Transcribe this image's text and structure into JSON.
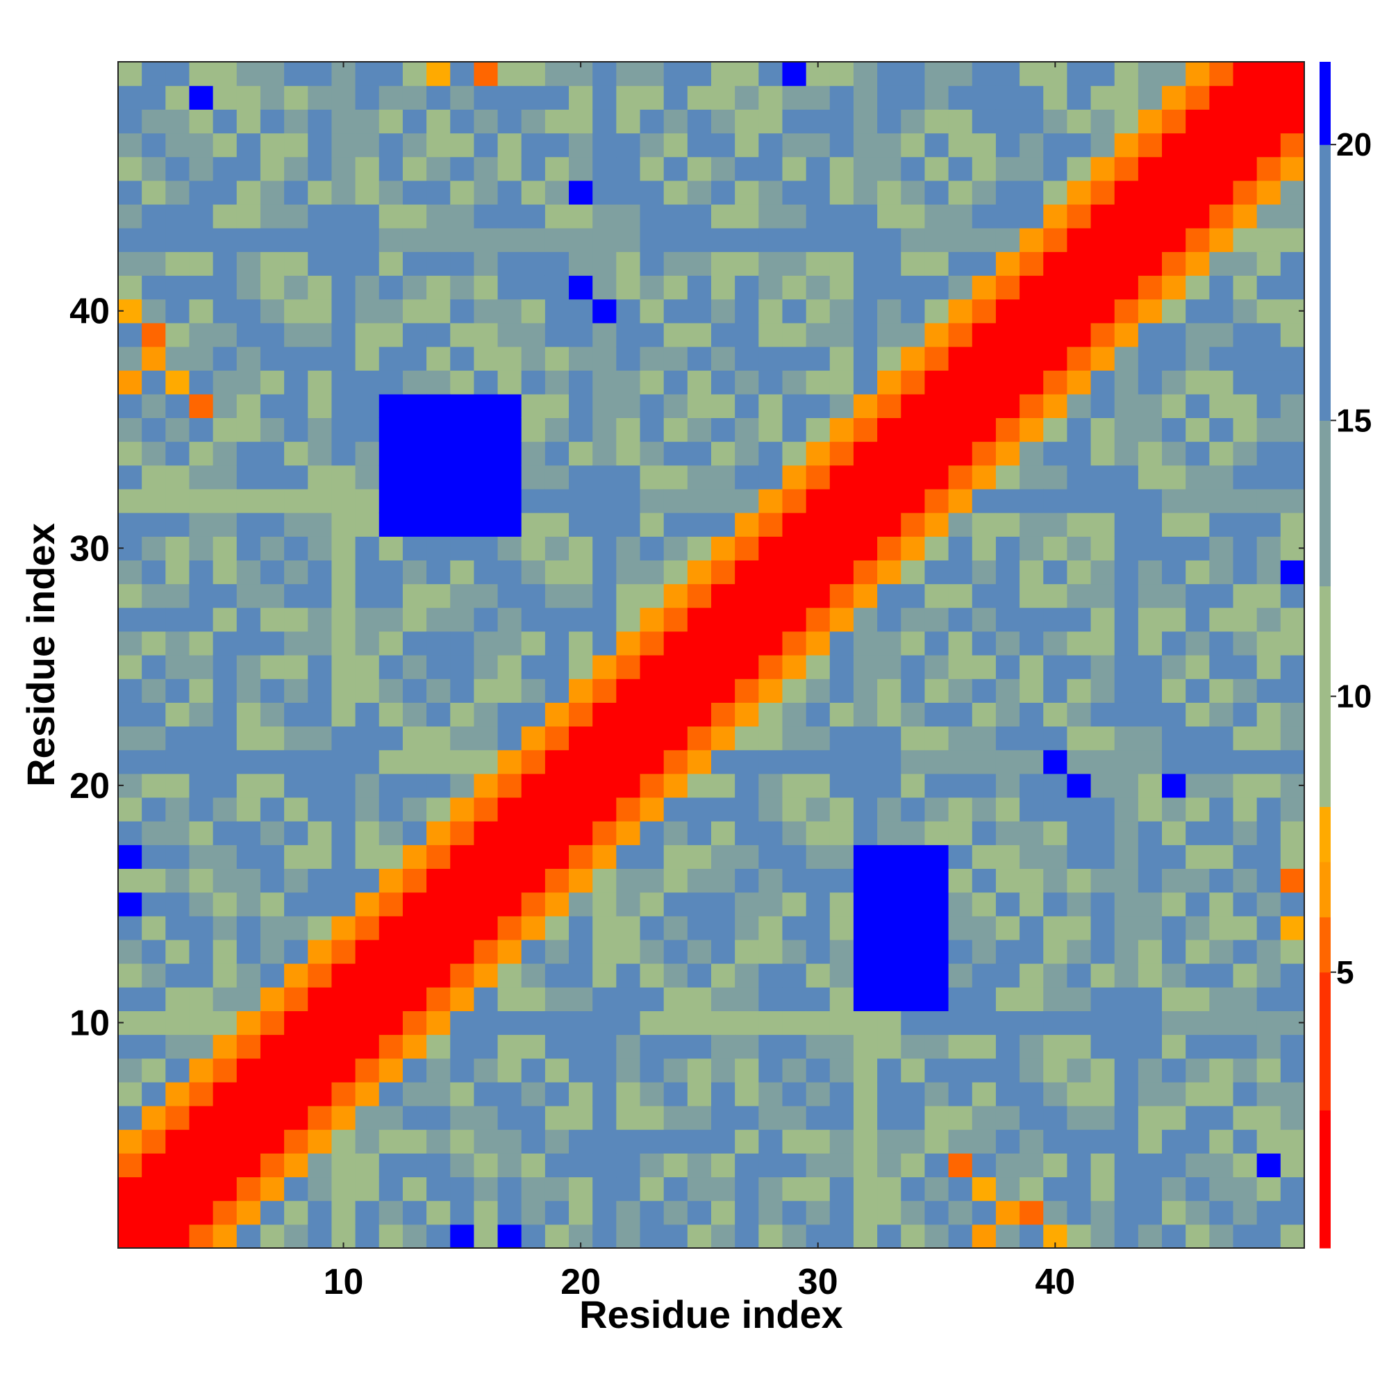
{
  "chart_data": {
    "type": "heatmap",
    "title": "",
    "xlabel": "Residue index",
    "ylabel": "Residue index",
    "n": 50,
    "x_ticks": [
      10,
      20,
      30,
      40
    ],
    "y_ticks": [
      10,
      20,
      30,
      40
    ],
    "xlim": [
      0.5,
      50.5
    ],
    "ylim": [
      0.5,
      50.5
    ],
    "origin": "lower",
    "grid": false,
    "colorbar": {
      "ticks": [
        5,
        10,
        15,
        20
      ],
      "range": [
        0,
        21.5
      ],
      "position": "right",
      "bins": [
        {
          "min": 0.0,
          "max": 2.5,
          "color": "#ff0000"
        },
        {
          "min": 2.5,
          "max": 5.0,
          "color": "#ff3300"
        },
        {
          "min": 5.0,
          "max": 6.0,
          "color": "#ff6600"
        },
        {
          "min": 6.0,
          "max": 7.0,
          "color": "#ff9900"
        },
        {
          "min": 7.0,
          "max": 8.0,
          "color": "#ffaa00"
        },
        {
          "min": 8.0,
          "max": 12.0,
          "color": "#9fbc88"
        },
        {
          "min": 12.0,
          "max": 15.0,
          "color": "#7fa0a0"
        },
        {
          "min": 15.0,
          "max": 20.0,
          "color": "#5a88bb"
        },
        {
          "min": 20.0,
          "max": 21.5,
          "color": "#0000ff"
        }
      ]
    },
    "value_rules": {
      "diagonal_band": {
        "max_offset": 2,
        "value": 2.0
      },
      "near_diagonal": [
        {
          "offset": 3,
          "value": 5.5
        },
        {
          "offset": 4,
          "value": 6.5
        }
      ],
      "background_pattern": {
        "low": 10.0,
        "mid": 13.5,
        "high": 17.0
      },
      "far_blocks": [
        {
          "x_range": [
            12,
            17
          ],
          "y_range": [
            31,
            36
          ],
          "value": 21
        },
        {
          "x_range": [
            32,
            35
          ],
          "y_range": [
            11,
            17
          ],
          "value": 21
        }
      ],
      "contacts": [
        {
          "x": 1,
          "y": 37,
          "value": 6.5
        },
        {
          "x": 2,
          "y": 38,
          "value": 6.5
        },
        {
          "x": 1,
          "y": 40,
          "value": 7.5
        },
        {
          "x": 2,
          "y": 39,
          "value": 5.5
        },
        {
          "x": 3,
          "y": 37,
          "value": 7.5
        },
        {
          "x": 4,
          "y": 36,
          "value": 5.5
        },
        {
          "x": 37,
          "y": 1,
          "value": 6.5
        },
        {
          "x": 38,
          "y": 2,
          "value": 6.5
        },
        {
          "x": 40,
          "y": 1,
          "value": 7.5
        },
        {
          "x": 39,
          "y": 2,
          "value": 5.5
        },
        {
          "x": 37,
          "y": 3,
          "value": 7.5
        },
        {
          "x": 36,
          "y": 4,
          "value": 5.5
        },
        {
          "x": 14,
          "y": 50,
          "value": 7.5
        },
        {
          "x": 16,
          "y": 50,
          "value": 5.5
        },
        {
          "x": 50,
          "y": 14,
          "value": 7.5
        },
        {
          "x": 50,
          "y": 16,
          "value": 5.5
        },
        {
          "x": 20,
          "y": 41,
          "value": 21
        },
        {
          "x": 21,
          "y": 40,
          "value": 21
        },
        {
          "x": 41,
          "y": 20,
          "value": 21
        },
        {
          "x": 40,
          "y": 21,
          "value": 21
        },
        {
          "x": 1,
          "y": 17,
          "value": 21
        },
        {
          "x": 1,
          "y": 15,
          "value": 21
        },
        {
          "x": 17,
          "y": 1,
          "value": 21
        },
        {
          "x": 15,
          "y": 1,
          "value": 21
        },
        {
          "x": 29,
          "y": 50,
          "value": 21
        },
        {
          "x": 50,
          "y": 29,
          "value": 21
        },
        {
          "x": 20,
          "y": 45,
          "value": 21
        },
        {
          "x": 45,
          "y": 20,
          "value": 21
        },
        {
          "x": 49,
          "y": 4,
          "value": 21
        },
        {
          "x": 4,
          "y": 49,
          "value": 21
        }
      ]
    }
  }
}
